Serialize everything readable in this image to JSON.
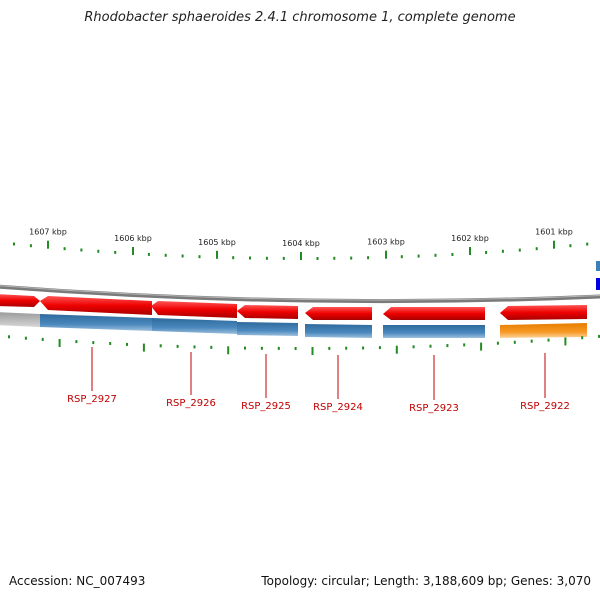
{
  "title": "Rhodobacter sphaeroides 2.4.1 chromosome 1, complete genome",
  "footer": {
    "accession": "Accession: NC_007493",
    "summary": "Topology: circular; Length: 3,188,609 bp; Genes: 3,070"
  },
  "colors": {
    "backbone": "#777777",
    "gene_forward": "#ee0000",
    "product_cds": "#3f7fb4",
    "product_alt": "#f28c0f",
    "ruler_ticks": "#228b22",
    "label_text": "#c00000"
  },
  "ruler": {
    "unit": "kbp",
    "ticks": [
      "1607 kbp",
      "1606 kbp",
      "1605 kbp",
      "1604 kbp",
      "1603 kbp",
      "1602 kbp",
      "1601 kbp"
    ]
  },
  "genes": [
    {
      "locus": "RSP_2927",
      "strand": "minus",
      "product_color": "blue"
    },
    {
      "locus": "RSP_2926",
      "strand": "minus",
      "product_color": "blue"
    },
    {
      "locus": "RSP_2925",
      "strand": "minus",
      "product_color": "blue"
    },
    {
      "locus": "RSP_2924",
      "strand": "minus",
      "product_color": "blue"
    },
    {
      "locus": "RSP_2923",
      "strand": "minus",
      "product_color": "blue"
    },
    {
      "locus": "RSP_2922",
      "strand": "minus",
      "product_color": "orange"
    }
  ]
}
